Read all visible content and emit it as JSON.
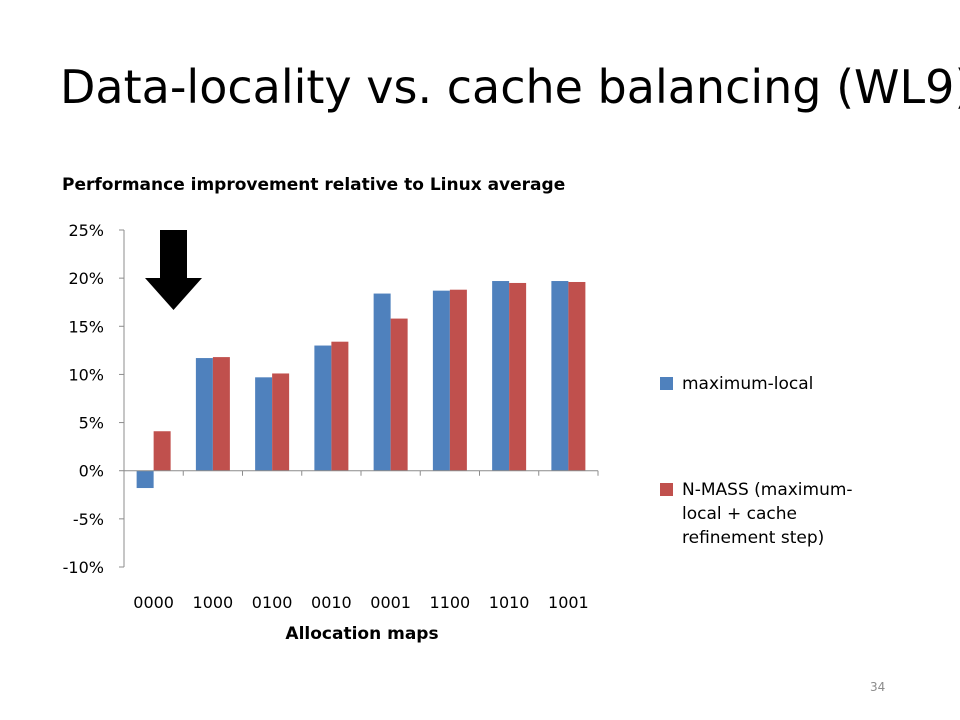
{
  "slide": {
    "title": "Data-locality vs. cache balancing (WL9)",
    "page_number": "34"
  },
  "chart_data": {
    "type": "bar",
    "title": "Performance improvement relative to Linux average",
    "xlabel": "Allocation maps",
    "ylabel": "",
    "categories": [
      "0000",
      "1000",
      "0100",
      "0010",
      "0001",
      "1100",
      "1010",
      "1001"
    ],
    "series": [
      {
        "name": "maximum-local",
        "color": "#4f81bd",
        "values": [
          -1.8,
          11.7,
          9.7,
          13.0,
          18.4,
          18.7,
          19.7,
          19.7
        ]
      },
      {
        "name": "N-MASS (maximum-local + cache refinement step)",
        "color": "#c0504d",
        "values": [
          4.1,
          11.8,
          10.1,
          13.4,
          15.8,
          18.8,
          19.5,
          19.6
        ]
      }
    ],
    "ylim": [
      -10,
      25
    ],
    "yticks": [
      -10,
      -5,
      0,
      5,
      10,
      15,
      20,
      25
    ],
    "ytick_labels": [
      "-10%",
      "-5%",
      "0%",
      "5%",
      "10%",
      "15%",
      "20%",
      "25%"
    ],
    "grid": false,
    "legend_position": "right",
    "annotation": "down-arrow-icon above category 0000"
  }
}
